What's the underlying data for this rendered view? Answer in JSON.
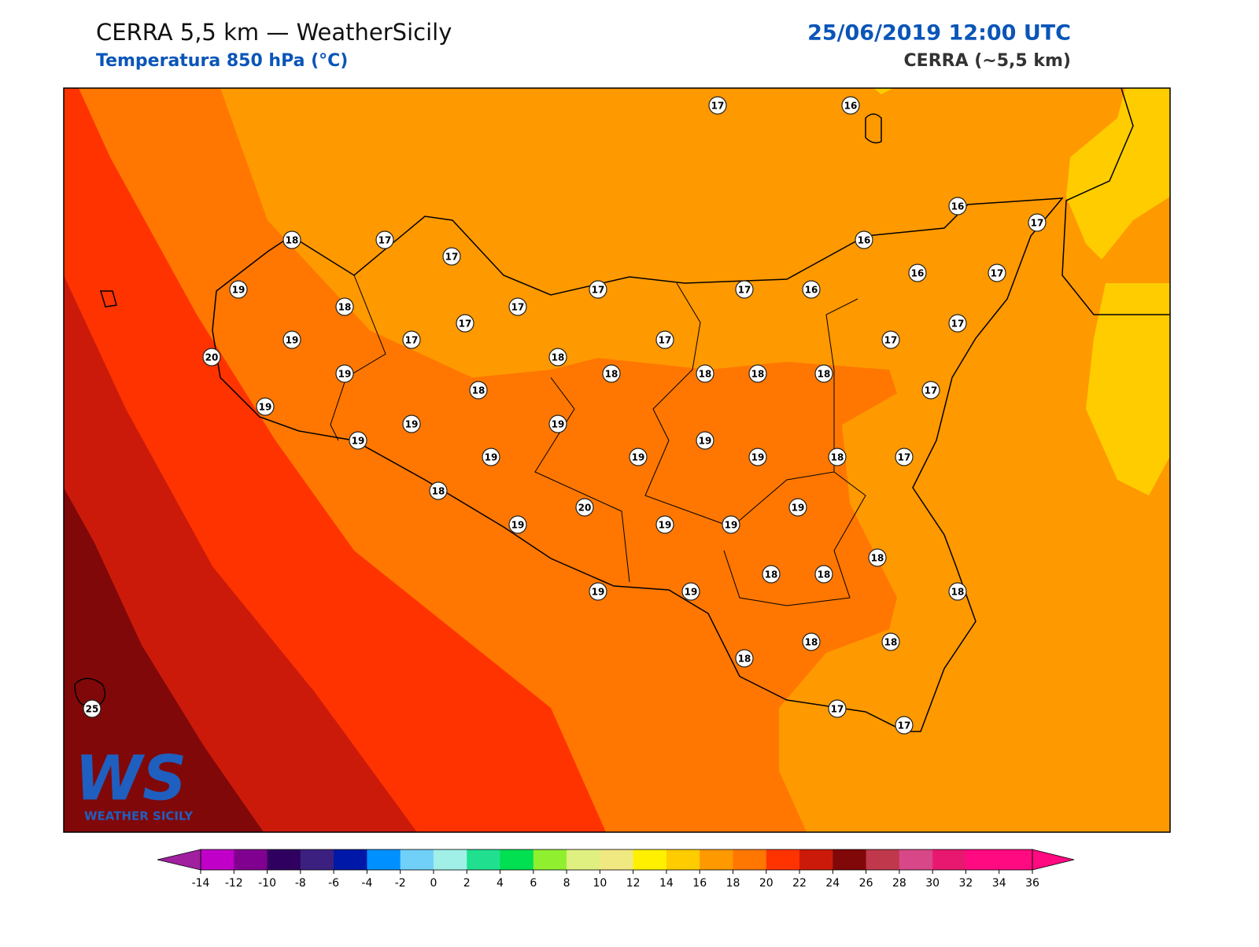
{
  "header": {
    "title": "CERRA 5,5 km — WeatherSicily",
    "subtitle": "Temperatura 850 hPa (°C)",
    "date": "25/06/2019 12:00 UTC",
    "source": "CERRA (~5,5 km)"
  },
  "map": {
    "stations": [
      17,
      16,
      18,
      17,
      17,
      16,
      17,
      16,
      19,
      18,
      17,
      17,
      17,
      16,
      16,
      17,
      19,
      20,
      17,
      17,
      17,
      18,
      17,
      17,
      19,
      18,
      18,
      18,
      18,
      18,
      17,
      19,
      19,
      19,
      19,
      19,
      19,
      19,
      19,
      18,
      17,
      18,
      20,
      19,
      19,
      19,
      19,
      18,
      18,
      18,
      18,
      19,
      19,
      18,
      18,
      18,
      17,
      17,
      25
    ],
    "colorbar": {
      "ticks": [
        -14,
        -12,
        -10,
        -8,
        -6,
        -4,
        -2,
        0,
        2,
        4,
        6,
        8,
        10,
        12,
        14,
        16,
        18,
        20,
        22,
        24,
        26,
        28,
        30,
        32,
        34,
        36
      ],
      "colors": [
        "#c000c8",
        "#800090",
        "#300060",
        "#3c2080",
        "#0018a8",
        "#0090ff",
        "#70d0f8",
        "#a0f0e8",
        "#20e090",
        "#00e050",
        "#90f030",
        "#e0f080",
        "#f0e880",
        "#fff000",
        "#ffcc00",
        "#ff9900",
        "#ff7700",
        "#ff3300",
        "#cc1a0a",
        "#800808",
        "#c0384c",
        "#d84888",
        "#e81870",
        "#ff0a80",
        "#ff0a80"
      ],
      "under_color": "#a020a0",
      "over_color": "#ff0a80"
    }
  },
  "logo": {
    "letters": "WS",
    "name": "WEATHER SICILY"
  }
}
